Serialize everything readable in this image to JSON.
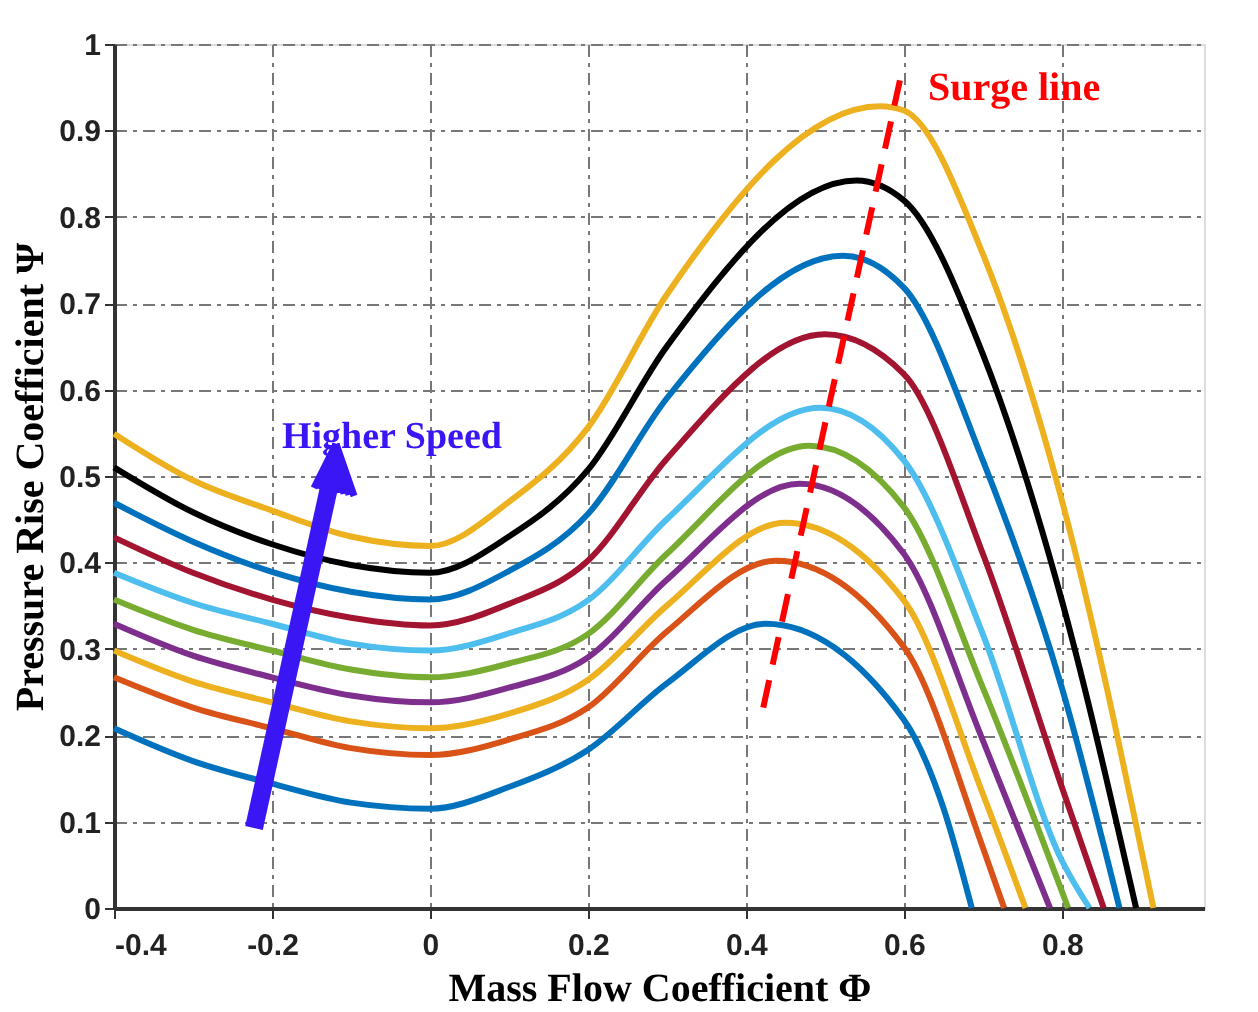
{
  "chart_data": {
    "type": "line",
    "xlabel": "Mass Flow Coefficient Φ",
    "ylabel": "Pressure Rise Coefficient Ψ",
    "xlim": [
      -0.4,
      0.98
    ],
    "xticks": [
      -0.4,
      -0.2,
      0,
      0.2,
      0.4,
      0.6,
      0.8
    ],
    "ylim": [
      0,
      1
    ],
    "yticks": [
      0,
      0.1,
      0.2,
      0.3,
      0.4,
      0.5,
      0.6,
      0.7,
      0.8,
      0.9,
      1
    ],
    "grid": true,
    "marker": "none",
    "line_style": "solid",
    "annotations": [
      "Higher Speed"
    ],
    "series": [
      {
        "color": "#0072bd",
        "x": [
          -0.4,
          -0.3,
          -0.2,
          -0.1,
          0,
          0.1,
          0.2,
          0.3,
          0.425,
          0.6,
          0.65,
          0.686
        ],
        "values": [
          0.208,
          0.17,
          0.144,
          0.122,
          0.115,
          0.14,
          0.183,
          0.26,
          0.329,
          0.218,
          0.116,
          0
        ]
      },
      {
        "color": "#d95319",
        "x": [
          -0.4,
          -0.3,
          -0.2,
          -0.1,
          0,
          0.1,
          0.2,
          0.3,
          0.438,
          0.6,
          0.7,
          0.727
        ],
        "values": [
          0.267,
          0.232,
          0.208,
          0.185,
          0.177,
          0.195,
          0.232,
          0.32,
          0.402,
          0.302,
          0.07,
          0
        ]
      },
      {
        "color": "#edb120",
        "x": [
          -0.4,
          -0.3,
          -0.2,
          -0.1,
          0,
          0.1,
          0.2,
          0.3,
          0.45,
          0.6,
          0.7,
          0.754
        ],
        "values": [
          0.298,
          0.262,
          0.238,
          0.216,
          0.208,
          0.225,
          0.264,
          0.35,
          0.446,
          0.356,
          0.132,
          0
        ]
      },
      {
        "color": "#7e2f8e",
        "x": [
          -0.4,
          -0.3,
          -0.2,
          -0.1,
          0,
          0.1,
          0.2,
          0.3,
          0.468,
          0.6,
          0.7,
          0.785
        ],
        "values": [
          0.329,
          0.292,
          0.267,
          0.246,
          0.238,
          0.255,
          0.29,
          0.38,
          0.491,
          0.41,
          0.194,
          0
        ]
      },
      {
        "color": "#77ac30",
        "x": [
          -0.4,
          -0.3,
          -0.2,
          -0.1,
          0,
          0.1,
          0.2,
          0.3,
          0.48,
          0.6,
          0.7,
          0.808
        ],
        "values": [
          0.357,
          0.322,
          0.298,
          0.276,
          0.267,
          0.283,
          0.317,
          0.41,
          0.535,
          0.464,
          0.255,
          0
        ]
      },
      {
        "color": "#4dbeee",
        "x": [
          -0.4,
          -0.3,
          -0.2,
          -0.1,
          0,
          0.1,
          0.2,
          0.3,
          0.494,
          0.6,
          0.7,
          0.8,
          0.835
        ],
        "values": [
          0.388,
          0.353,
          0.329,
          0.306,
          0.298,
          0.318,
          0.356,
          0.45,
          0.579,
          0.518,
          0.317,
          0.055,
          0
        ]
      },
      {
        "color": "#a2142f",
        "x": [
          -0.4,
          -0.3,
          -0.2,
          -0.1,
          0,
          0.1,
          0.2,
          0.3,
          0.5,
          0.6,
          0.7,
          0.8,
          0.853
        ],
        "values": [
          0.429,
          0.388,
          0.357,
          0.336,
          0.327,
          0.352,
          0.402,
          0.52,
          0.664,
          0.618,
          0.41,
          0.14,
          0
        ]
      },
      {
        "color": "#0072bd",
        "x": [
          -0.4,
          -0.3,
          -0.2,
          -0.1,
          0,
          0.1,
          0.2,
          0.3,
          0.523,
          0.6,
          0.7,
          0.8,
          0.873
        ],
        "values": [
          0.469,
          0.424,
          0.389,
          0.366,
          0.357,
          0.39,
          0.456,
          0.59,
          0.755,
          0.718,
          0.518,
          0.255,
          0
        ]
      },
      {
        "color": "#000000",
        "x": [
          -0.4,
          -0.3,
          -0.2,
          -0.1,
          0,
          0.1,
          0.2,
          0.3,
          0.54,
          0.6,
          0.7,
          0.8,
          0.894
        ],
        "values": [
          0.51,
          0.458,
          0.421,
          0.397,
          0.388,
          0.43,
          0.507,
          0.65,
          0.842,
          0.819,
          0.641,
          0.356,
          0
        ]
      },
      {
        "color": "#edb120",
        "x": [
          -0.4,
          -0.3,
          -0.2,
          -0.1,
          0,
          0.1,
          0.2,
          0.3,
          0.57,
          0.6,
          0.7,
          0.8,
          0.916
        ],
        "values": [
          0.549,
          0.495,
          0.46,
          0.43,
          0.419,
          0.47,
          0.556,
          0.71,
          0.928,
          0.923,
          0.757,
          0.472,
          0
        ]
      },
      {
        "name": "Surge line",
        "color": "#ff0000",
        "line_style": "dashed",
        "x": [
          0.422,
          0.595
        ],
        "values": [
          0.232,
          0.958
        ]
      }
    ]
  }
}
